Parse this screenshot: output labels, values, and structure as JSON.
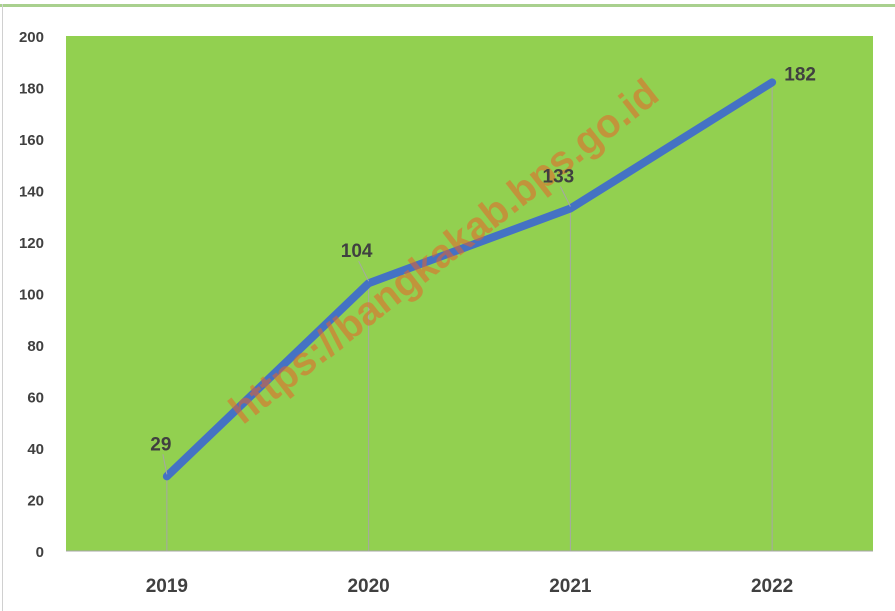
{
  "chart_data": {
    "type": "line",
    "title": "",
    "xlabel": "",
    "ylabel": "",
    "categories": [
      "2019",
      "2020",
      "2021",
      "2022"
    ],
    "series": [
      {
        "values": [
          29,
          104,
          133,
          182
        ]
      }
    ],
    "data_labels": [
      "29",
      "104",
      "133",
      "182"
    ],
    "ylim": [
      0,
      200
    ],
    "yticks": [
      "0",
      "20",
      "40",
      "60",
      "80",
      "100",
      "120",
      "140",
      "160",
      "180",
      "200"
    ],
    "grid": false,
    "legend": "none",
    "watermark": "https://bangkakab.bps.go.id",
    "colors": {
      "plot_background": "#92d050",
      "line": "#4472c4",
      "text": "#404040",
      "drop_lines": "#a6a6a6",
      "watermark": "#e8622a"
    }
  }
}
